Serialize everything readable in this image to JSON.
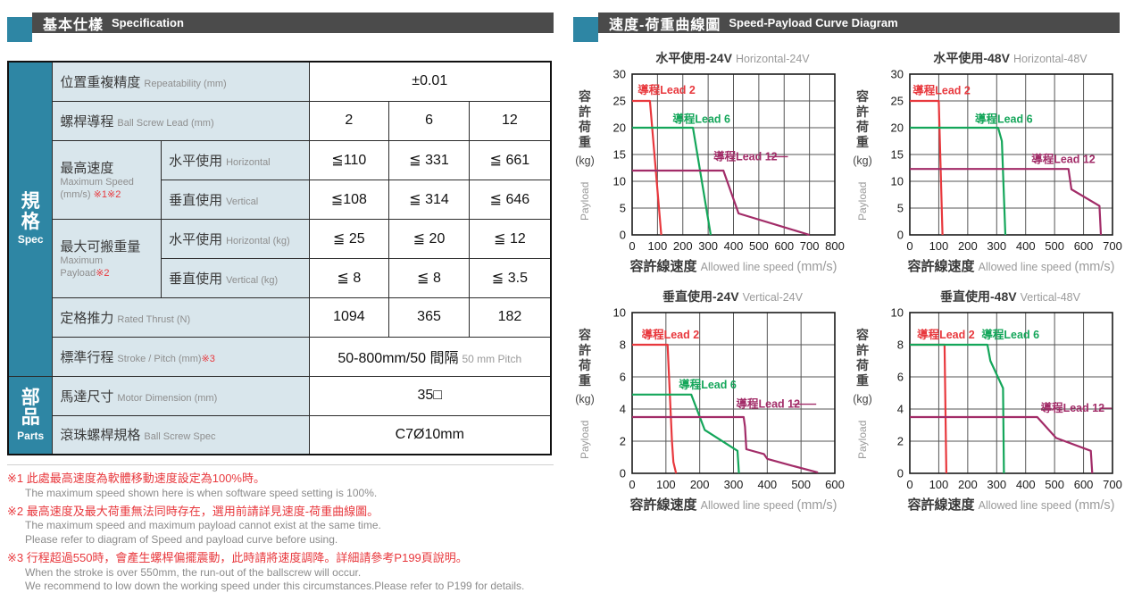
{
  "colors": {
    "accent_teal": "#2e86a4",
    "header_bar": "#4b4b4b",
    "note_red": "#e8383d",
    "lead2_red": "#e8383d",
    "lead6_green": "#14a65a",
    "lead12_purple": "#a22c68",
    "label_cell_bg": "#d9e6ec"
  },
  "headers": {
    "left": {
      "zh": "基本仕樣",
      "en": "Specification"
    },
    "right": {
      "zh": "速度-荷重曲線圖",
      "en": "Speed-Payload Curve Diagram"
    }
  },
  "spec_table": {
    "sidebar": [
      {
        "zh": "規格",
        "en": "Spec"
      },
      {
        "zh": "部品",
        "en": "Parts"
      }
    ],
    "rows": {
      "repeatability": {
        "zh": "位置重複精度",
        "en": "Repeatability (mm)",
        "value": "±0.01"
      },
      "lead": {
        "zh": "螺桿導程",
        "en": "Ball Screw Lead (mm)",
        "values": [
          "2",
          "6",
          "12"
        ]
      },
      "max_speed": {
        "zh": "最高速度",
        "en1": "Maximum Speed",
        "en2": "(mm/s)",
        "note": "※1※2",
        "horizontal": {
          "zh": "水平使用",
          "en": "Horizontal",
          "values": [
            "≦110",
            "≦ 331",
            "≦ 661"
          ]
        },
        "vertical": {
          "zh": "垂直使用",
          "en": "Vertical",
          "values": [
            "≦108",
            "≦ 314",
            "≦ 646"
          ]
        }
      },
      "max_payload": {
        "zh": "最大可搬重量",
        "en1": "Maximum Payload",
        "note": "※2",
        "horizontal": {
          "zh": "水平使用",
          "en": "Horizontal (kg)",
          "values": [
            "≦ 25",
            "≦ 20",
            "≦ 12"
          ]
        },
        "vertical": {
          "zh": "垂直使用",
          "en": "Vertical (kg)",
          "values": [
            "≦ 8",
            "≦ 8",
            "≦ 3.5"
          ]
        }
      },
      "rated_thrust": {
        "zh": "定格推力",
        "en": "Rated Thrust (N)",
        "values": [
          "1094",
          "365",
          "182"
        ]
      },
      "stroke": {
        "zh": "標準行程",
        "en": "Stroke / Pitch (mm)",
        "note": "※3",
        "value_main": "50-800mm/50 間隔",
        "value_sub": "50 mm Pitch"
      },
      "motor": {
        "zh": "馬達尺寸",
        "en": "Motor Dimension (mm)",
        "value": "35□"
      },
      "ball_screw": {
        "zh": "滾珠螺桿規格",
        "en": "Ball Screw Spec",
        "value": "C7Ø10mm"
      }
    }
  },
  "footnotes": [
    {
      "zh": "※1 此處最高速度為軟體移動速度設定為100%時。",
      "en": [
        "The maximum speed shown here is when software speed setting is 100%."
      ]
    },
    {
      "zh": "※2 最高速度及最大荷重無法同時存在，選用前請詳見速度-荷重曲線圖。",
      "en": [
        "The maximum speed and maximum payload cannot exist at the same time.",
        "Please refer to diagram of Speed and payload curve before using."
      ]
    },
    {
      "zh": "※3 行程超過550時，會產生螺桿偏擺震動，此時請將速度調降。詳細請參考P199頁說明。",
      "en": [
        "When the stroke is over 550mm, the run-out of the ballscrew will occur.",
        "We recommend to low down the working speed under this circumstances.Please refer to P199 for details."
      ]
    }
  ],
  "chart_data": [
    {
      "type": "line",
      "title_zh": "水平使用-24V",
      "title_en": "Horizontal-24V",
      "xlabel_zh": "容許線速度",
      "xlabel_en": "Allowed line speed",
      "xlabel_unit": "(mm/s)",
      "ylabel_zh": "容許荷重",
      "ylabel_unit": "(kg)",
      "ylabel_en": "Payload",
      "xlim": [
        0,
        800
      ],
      "ylim": [
        0,
        30
      ],
      "xticks": [
        0,
        100,
        200,
        300,
        400,
        500,
        600,
        700,
        800
      ],
      "yticks": [
        0,
        5,
        10,
        15,
        20,
        25,
        30
      ],
      "grid": true,
      "series": [
        {
          "name": "導程Lead 2",
          "color": "#e8383d",
          "points": [
            [
              0,
              25
            ],
            [
              70,
              25
            ],
            [
              115,
              0
            ]
          ],
          "label_pos": [
            22,
            27.0
          ]
        },
        {
          "name": "導程Lead 6",
          "color": "#14a65a",
          "points": [
            [
              0,
              20
            ],
            [
              240,
              20
            ],
            [
              310,
              0
            ]
          ],
          "label_pos": [
            160,
            21.6
          ]
        },
        {
          "name": "導程Lead 12",
          "color": "#a22c68",
          "points": [
            [
              0,
              12
            ],
            [
              360,
              12
            ],
            [
              420,
              4
            ],
            [
              700,
              0
            ]
          ],
          "label_pos": [
            321,
            14.6
          ],
          "leader": [
            535,
            615
          ]
        }
      ]
    },
    {
      "type": "line",
      "title_zh": "水平使用-48V",
      "title_en": "Horizontal-48V",
      "xlabel_zh": "容許線速度",
      "xlabel_en": "Allowed line speed",
      "xlabel_unit": "(mm/s)",
      "ylabel_zh": "容許荷重",
      "ylabel_unit": "(kg)",
      "ylabel_en": "Payload",
      "xlim": [
        0,
        700
      ],
      "ylim": [
        0,
        30
      ],
      "xticks": [
        0,
        100,
        200,
        300,
        400,
        500,
        600,
        700
      ],
      "yticks": [
        0,
        5,
        10,
        15,
        20,
        25,
        30
      ],
      "grid": true,
      "series": [
        {
          "name": "導程Lead 2",
          "color": "#e8383d",
          "points": [
            [
              0,
              25
            ],
            [
              100,
              25
            ],
            [
              113,
              0
            ]
          ],
          "label_pos": [
            10,
            26.9
          ]
        },
        {
          "name": "導程Lead 6",
          "color": "#14a65a",
          "points": [
            [
              0,
              20
            ],
            [
              305,
              20
            ],
            [
              318,
              17.5
            ],
            [
              330,
              0
            ]
          ],
          "label_pos": [
            225,
            21.6
          ]
        },
        {
          "name": "導程Lead 12",
          "color": "#a22c68",
          "points": [
            [
              0,
              12.3
            ],
            [
              548,
              12.3
            ],
            [
              558,
              8.5
            ],
            [
              655,
              5.4
            ],
            [
              660,
              0
            ]
          ],
          "label_pos": [
            420,
            14.1
          ]
        }
      ]
    },
    {
      "type": "line",
      "title_zh": "垂直使用-24V",
      "title_en": "Vertical-24V",
      "xlabel_zh": "容許線速度",
      "xlabel_en": "Allowed line speed",
      "xlabel_unit": "(mm/s)",
      "ylabel_zh": "容許荷重",
      "ylabel_unit": "(kg)",
      "ylabel_en": "Payload",
      "xlim": [
        0,
        600
      ],
      "ylim": [
        0,
        10
      ],
      "xticks": [
        0,
        100,
        200,
        300,
        400,
        500,
        600
      ],
      "yticks": [
        0,
        2,
        4,
        6,
        8,
        10
      ],
      "grid": true,
      "series": [
        {
          "name": "導程Lead 2",
          "color": "#e8383d",
          "points": [
            [
              0,
              8
            ],
            [
              105,
              8
            ],
            [
              118,
              2
            ],
            [
              122,
              0.7
            ],
            [
              130,
              0
            ]
          ],
          "label_pos": [
            28,
            8.6
          ]
        },
        {
          "name": "導程Lead 6",
          "color": "#14a65a",
          "points": [
            [
              0,
              4.9
            ],
            [
              175,
              4.9
            ],
            [
              215,
              2.7
            ],
            [
              312,
              1.4
            ],
            [
              316,
              0
            ]
          ],
          "label_pos": [
            138,
            5.5
          ]
        },
        {
          "name": "導程Lead 12",
          "color": "#a22c68",
          "points": [
            [
              0,
              3.5
            ],
            [
              330,
              3.5
            ],
            [
              334,
              2.9
            ],
            [
              338,
              1.5
            ],
            [
              390,
              1.2
            ],
            [
              400,
              0.9
            ],
            [
              460,
              0.55
            ],
            [
              550,
              0.05
            ]
          ],
          "label_pos": [
            308,
            4.3
          ],
          "leader": [
            475,
            545
          ]
        }
      ]
    },
    {
      "type": "line",
      "title_zh": "垂直使用-48V",
      "title_en": "Vertical-48V",
      "xlabel_zh": "容許線速度",
      "xlabel_en": "Allowed line speed",
      "xlabel_unit": "(mm/s)",
      "ylabel_zh": "容許荷重",
      "ylabel_unit": "(kg)",
      "ylabel_en": "Payload",
      "xlim": [
        0,
        700
      ],
      "ylim": [
        0,
        10
      ],
      "xticks": [
        0,
        100,
        200,
        300,
        400,
        500,
        600,
        700
      ],
      "yticks": [
        0,
        2,
        4,
        6,
        8,
        10
      ],
      "grid": true,
      "series": [
        {
          "name": "導程Lead 2",
          "color": "#e8383d",
          "points": [
            [
              0,
              8
            ],
            [
              120,
              8
            ],
            [
              126,
              0
            ]
          ],
          "label_pos": [
            25,
            8.6
          ]
        },
        {
          "name": "導程Lead 6",
          "color": "#14a65a",
          "points": [
            [
              0,
              8
            ],
            [
              268,
              8
            ],
            [
              278,
              7
            ],
            [
              322,
              5.3
            ],
            [
              325,
              0
            ]
          ],
          "label_pos": [
            248,
            8.6
          ]
        },
        {
          "name": "導程Lead 12",
          "color": "#a22c68",
          "points": [
            [
              0,
              3.5
            ],
            [
              440,
              3.5
            ],
            [
              505,
              2.2
            ],
            [
              625,
              1.4
            ],
            [
              630,
              0
            ]
          ],
          "label_pos": [
            452,
            4.05
          ],
          "leader": [
            655,
            697
          ]
        }
      ]
    }
  ]
}
